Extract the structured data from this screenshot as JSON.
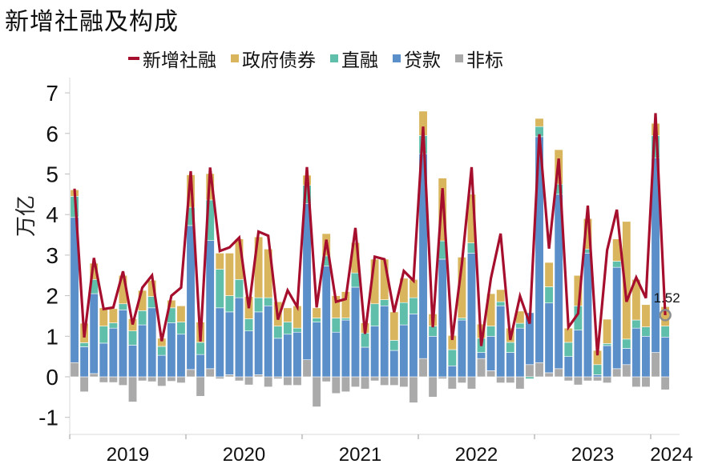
{
  "title": "新增社融及构成",
  "legend": [
    {
      "label": "新增社融",
      "type": "line",
      "color": "#a50f2d"
    },
    {
      "label": "政府债券",
      "type": "box",
      "color": "#d9b65e"
    },
    {
      "label": "直融",
      "type": "box",
      "color": "#5fbfab"
    },
    {
      "label": "贷款",
      "type": "box",
      "color": "#5b8fc9"
    },
    {
      "label": "非标",
      "type": "box",
      "color": "#aaaaaa"
    }
  ],
  "ylabel": "万亿",
  "annotation": {
    "label": "1.52",
    "index": 61
  },
  "chart_data": {
    "type": "bar",
    "title": "新增社融及构成",
    "xlabel": "",
    "ylabel": "万亿",
    "ylim": [
      -1.3,
      7.3
    ],
    "yticks": [
      -1,
      0,
      1,
      2,
      3,
      4,
      5,
      6,
      7
    ],
    "xtick_labels": [
      "2019",
      "2020",
      "2021",
      "2022",
      "2023",
      "2024"
    ],
    "grid": false,
    "legend_position": "top",
    "stacked": true,
    "categories": [
      "2019-01",
      "2019-02",
      "2019-03",
      "2019-04",
      "2019-05",
      "2019-06",
      "2019-07",
      "2019-08",
      "2019-09",
      "2019-10",
      "2019-11",
      "2019-12",
      "2020-01",
      "2020-02",
      "2020-03",
      "2020-04",
      "2020-05",
      "2020-06",
      "2020-07",
      "2020-08",
      "2020-09",
      "2020-10",
      "2020-11",
      "2020-12",
      "2021-01",
      "2021-02",
      "2021-03",
      "2021-04",
      "2021-05",
      "2021-06",
      "2021-07",
      "2021-08",
      "2021-09",
      "2021-10",
      "2021-11",
      "2021-12",
      "2022-01",
      "2022-02",
      "2022-03",
      "2022-04",
      "2022-05",
      "2022-06",
      "2022-07",
      "2022-08",
      "2022-09",
      "2022-10",
      "2022-11",
      "2022-12",
      "2023-01",
      "2023-02",
      "2023-03",
      "2023-04",
      "2023-05",
      "2023-06",
      "2023-07",
      "2023-08",
      "2023-09",
      "2023-10",
      "2023-11",
      "2023-12",
      "2024-01",
      "2024-02"
    ],
    "series": [
      {
        "name": "非标",
        "color": "#aaaaaa",
        "values": [
          0.35,
          -0.37,
          0.08,
          -0.14,
          -0.14,
          -0.21,
          -0.62,
          -0.1,
          -0.12,
          -0.23,
          -0.11,
          -0.15,
          0.18,
          -0.48,
          0.2,
          -0.05,
          0.05,
          -0.1,
          -0.2,
          0.05,
          -0.25,
          -0.05,
          -0.21,
          -0.21,
          0.42,
          -0.74,
          -0.12,
          -0.41,
          -0.37,
          -0.25,
          -0.3,
          -0.1,
          -0.21,
          -0.21,
          -0.25,
          -0.64,
          0.45,
          -0.5,
          -0.05,
          -0.3,
          -0.15,
          -0.3,
          0.45,
          0.15,
          -0.15,
          -0.15,
          -0.3,
          0.3,
          0.35,
          0.1,
          0.2,
          -0.1,
          -0.2,
          -0.1,
          -0.1,
          -0.15,
          0.2,
          0.3,
          -0.25,
          -0.25,
          0.6,
          -0.32
        ]
      },
      {
        "name": "贷款",
        "color": "#5b8fc9",
        "values": [
          3.58,
          0.74,
          1.97,
          0.83,
          1.2,
          1.65,
          0.78,
          1.28,
          1.7,
          0.53,
          1.33,
          1.05,
          3.55,
          0.55,
          3.16,
          1.7,
          1.55,
          1.95,
          1.13,
          1.55,
          1.75,
          0.95,
          1.05,
          1.1,
          3.85,
          1.35,
          2.73,
          1.1,
          1.4,
          2.21,
          0.73,
          1.25,
          1.75,
          0.65,
          1.28,
          1.55,
          5.05,
          1.0,
          2.9,
          0.27,
          1.4,
          3.05,
          0.15,
          0.85,
          1.75,
          0.6,
          1.2,
          1.28,
          5.57,
          1.72,
          4.3,
          0.5,
          1.15,
          3.05,
          0.05,
          0.77,
          2.5,
          0.4,
          1.2,
          1.0,
          4.8,
          0.98
        ]
      },
      {
        "name": "直融",
        "color": "#5fbfab",
        "values": [
          0.52,
          0.1,
          0.35,
          0.42,
          0.13,
          0.15,
          0.35,
          0.35,
          0.28,
          0.22,
          0.37,
          0.3,
          0.45,
          0.3,
          1.0,
          0.95,
          0.4,
          0.45,
          0.3,
          0.35,
          0.2,
          0.3,
          0.3,
          0.1,
          0.45,
          0.1,
          0.25,
          0.35,
          0.05,
          0.35,
          0.35,
          0.55,
          0.15,
          0.25,
          0.55,
          0.4,
          0.45,
          0.25,
          0.45,
          0.4,
          0.05,
          0.25,
          0.35,
          0.25,
          0.1,
          0.25,
          0.12,
          -0.05,
          0.25,
          0.4,
          0.25,
          0.35,
          0.6,
          0.1,
          0.25,
          0.05,
          0.15,
          0.23,
          0.2,
          0.23,
          0.55,
          0.27
        ]
      },
      {
        "name": "政府债券",
        "color": "#d9b65e",
        "values": [
          0.16,
          0.48,
          0.4,
          0.45,
          0.35,
          0.7,
          0.3,
          0.5,
          0.4,
          0.2,
          0.19,
          0.4,
          0.8,
          0.5,
          0.65,
          0.4,
          1.05,
          1.0,
          0.55,
          1.5,
          1.2,
          0.6,
          0.35,
          0.55,
          0.25,
          0.25,
          0.55,
          0.55,
          0.65,
          0.75,
          0.25,
          1.1,
          1.0,
          0.7,
          0.6,
          0.45,
          0.6,
          0.3,
          1.55,
          0.35,
          1.5,
          1.2,
          0.35,
          0.8,
          0.3,
          0.35,
          0.3,
          0.0,
          0.2,
          0.6,
          0.85,
          0.35,
          0.75,
          0.75,
          0.35,
          0.6,
          0.55,
          2.9,
          1.0,
          0.55,
          0.3,
          0.48
        ]
      }
    ],
    "line": {
      "name": "新增社融",
      "color": "#a50f2d",
      "values": [
        4.64,
        0.97,
        2.93,
        1.67,
        1.71,
        2.6,
        1.29,
        2.2,
        2.5,
        0.88,
        2.0,
        2.2,
        5.07,
        0.87,
        5.16,
        3.1,
        3.19,
        3.43,
        1.69,
        3.58,
        3.48,
        1.41,
        2.13,
        1.72,
        5.17,
        1.71,
        3.38,
        1.85,
        1.92,
        3.67,
        1.06,
        2.96,
        2.9,
        1.59,
        2.61,
        2.37,
        6.17,
        1.22,
        4.65,
        0.91,
        2.79,
        5.17,
        0.76,
        2.43,
        3.53,
        0.91,
        1.99,
        1.31,
        5.98,
        3.16,
        5.38,
        1.22,
        1.56,
        4.22,
        0.53,
        3.12,
        4.12,
        1.85,
        2.45,
        1.94,
        6.5,
        1.52
      ]
    }
  }
}
